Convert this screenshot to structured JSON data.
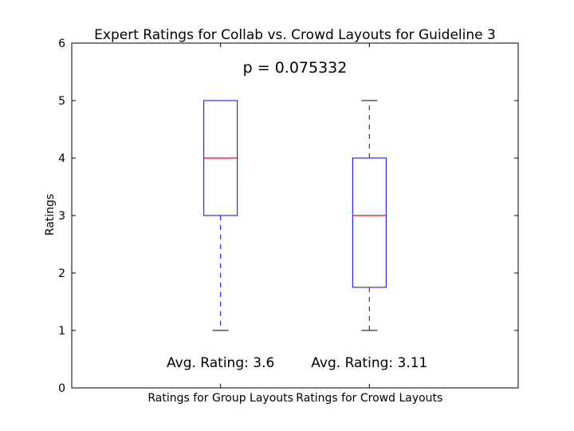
{
  "chart_data": {
    "type": "box",
    "title": "Expert Ratings for Collab vs. Crowd Layouts for Guideline 3",
    "annotation": "p = 0.075332",
    "xlabel": "",
    "ylabel": "Ratings",
    "ylim": [
      0,
      6
    ],
    "yticks": [
      0,
      1,
      2,
      3,
      4,
      5,
      6
    ],
    "grid": false,
    "categories": [
      "Ratings for Group Layouts",
      "Ratings for Crowd Layouts"
    ],
    "boxes": [
      {
        "category": "Ratings for Group Layouts",
        "whisker_low": 1,
        "q1": 3,
        "median": 4,
        "q3": 5,
        "whisker_high": 5,
        "avg_label": "Avg. Rating: 3.6"
      },
      {
        "category": "Ratings for Crowd Layouts",
        "whisker_low": 1,
        "q1": 1.75,
        "median": 3,
        "q3": 4,
        "whisker_high": 5,
        "avg_label": "Avg. Rating: 3.11"
      }
    ],
    "colors": {
      "box": "#0000ff",
      "median": "#ff0000",
      "whisker": "#0000ff",
      "cap": "#000000",
      "axis": "#000000"
    }
  }
}
